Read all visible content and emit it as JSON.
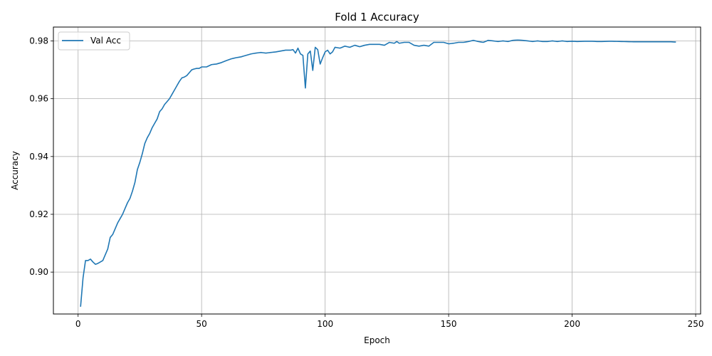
{
  "chart_data": {
    "type": "line",
    "title": "Fold 1 Accuracy",
    "xlabel": "Epoch",
    "ylabel": "Accuracy",
    "xlim": [
      -10,
      252
    ],
    "ylim": [
      0.8855,
      0.9848
    ],
    "xticks": [
      0,
      50,
      100,
      150,
      200,
      250
    ],
    "yticks": [
      0.9,
      0.92,
      0.94,
      0.96,
      0.98
    ],
    "xtick_labels": [
      "0",
      "50",
      "100",
      "150",
      "200",
      "250"
    ],
    "ytick_labels": [
      "0.90",
      "0.92",
      "0.94",
      "0.96",
      "0.98"
    ],
    "grid": true,
    "legend": {
      "position": "top-left",
      "entries": [
        "Val Acc"
      ]
    },
    "series_color": "#1f77b4",
    "anchors": [
      [
        1,
        0.888
      ],
      [
        2,
        0.898
      ],
      [
        3,
        0.904
      ],
      [
        4,
        0.904
      ],
      [
        5,
        0.9045
      ],
      [
        6,
        0.9035
      ],
      [
        7,
        0.9027
      ],
      [
        8,
        0.903
      ],
      [
        9,
        0.9035
      ],
      [
        10,
        0.904
      ],
      [
        11,
        0.906
      ],
      [
        12,
        0.908
      ],
      [
        13,
        0.912
      ],
      [
        14,
        0.913
      ],
      [
        15,
        0.915
      ],
      [
        16,
        0.917
      ],
      [
        17,
        0.9185
      ],
      [
        18,
        0.92
      ],
      [
        19,
        0.922
      ],
      [
        20,
        0.924
      ],
      [
        21,
        0.9255
      ],
      [
        22,
        0.928
      ],
      [
        23,
        0.931
      ],
      [
        24,
        0.9355
      ],
      [
        25,
        0.938
      ],
      [
        26,
        0.941
      ],
      [
        27,
        0.9445
      ],
      [
        28,
        0.9465
      ],
      [
        29,
        0.948
      ],
      [
        30,
        0.95
      ],
      [
        31,
        0.9515
      ],
      [
        32,
        0.953
      ],
      [
        33,
        0.9555
      ],
      [
        34,
        0.9565
      ],
      [
        35,
        0.958
      ],
      [
        36,
        0.959
      ],
      [
        37,
        0.96
      ],
      [
        38,
        0.9615
      ],
      [
        39,
        0.963
      ],
      [
        40,
        0.9645
      ],
      [
        41,
        0.966
      ],
      [
        42,
        0.9672
      ],
      [
        43,
        0.9675
      ],
      [
        44,
        0.968
      ],
      [
        45,
        0.969
      ],
      [
        46,
        0.97
      ],
      [
        47,
        0.9703
      ],
      [
        48,
        0.9705
      ],
      [
        49,
        0.9705
      ],
      [
        50,
        0.971
      ],
      [
        52,
        0.971
      ],
      [
        54,
        0.9718
      ],
      [
        56,
        0.972
      ],
      [
        58,
        0.9725
      ],
      [
        60,
        0.9732
      ],
      [
        62,
        0.9738
      ],
      [
        64,
        0.9742
      ],
      [
        66,
        0.9745
      ],
      [
        68,
        0.975
      ],
      [
        70,
        0.9755
      ],
      [
        72,
        0.9758
      ],
      [
        74,
        0.976
      ],
      [
        76,
        0.9758
      ],
      [
        78,
        0.976
      ],
      [
        80,
        0.9762
      ],
      [
        82,
        0.9765
      ],
      [
        84,
        0.9768
      ],
      [
        86,
        0.9768
      ],
      [
        87,
        0.977
      ],
      [
        88,
        0.9758
      ],
      [
        89,
        0.9775
      ],
      [
        90,
        0.9755
      ],
      [
        91,
        0.975
      ],
      [
        92,
        0.9637
      ],
      [
        93,
        0.9755
      ],
      [
        94,
        0.9765
      ],
      [
        95,
        0.9698
      ],
      [
        96,
        0.9778
      ],
      [
        97,
        0.977
      ],
      [
        98,
        0.972
      ],
      [
        99,
        0.9742
      ],
      [
        100,
        0.9762
      ],
      [
        101,
        0.9768
      ],
      [
        102,
        0.9755
      ],
      [
        103,
        0.9762
      ],
      [
        104,
        0.9778
      ],
      [
        106,
        0.9775
      ],
      [
        108,
        0.9782
      ],
      [
        110,
        0.9778
      ],
      [
        112,
        0.9785
      ],
      [
        114,
        0.978
      ],
      [
        116,
        0.9785
      ],
      [
        118,
        0.9788
      ],
      [
        120,
        0.9788
      ],
      [
        122,
        0.9788
      ],
      [
        124,
        0.9785
      ],
      [
        126,
        0.9795
      ],
      [
        128,
        0.9792
      ],
      [
        129,
        0.9798
      ],
      [
        130,
        0.9792
      ],
      [
        132,
        0.9795
      ],
      [
        134,
        0.9795
      ],
      [
        136,
        0.9785
      ],
      [
        138,
        0.9782
      ],
      [
        140,
        0.9785
      ],
      [
        142,
        0.9782
      ],
      [
        144,
        0.9795
      ],
      [
        146,
        0.9795
      ],
      [
        148,
        0.9795
      ],
      [
        150,
        0.979
      ],
      [
        152,
        0.9792
      ],
      [
        154,
        0.9795
      ],
      [
        156,
        0.9795
      ],
      [
        158,
        0.9798
      ],
      [
        160,
        0.9802
      ],
      [
        162,
        0.9798
      ],
      [
        164,
        0.9795
      ],
      [
        166,
        0.9802
      ],
      [
        168,
        0.98
      ],
      [
        170,
        0.9798
      ],
      [
        172,
        0.98
      ],
      [
        174,
        0.9798
      ],
      [
        176,
        0.9802
      ],
      [
        178,
        0.9803
      ],
      [
        180,
        0.9802
      ],
      [
        182,
        0.98
      ],
      [
        184,
        0.9798
      ],
      [
        186,
        0.98
      ],
      [
        188,
        0.9798
      ],
      [
        190,
        0.9798
      ],
      [
        192,
        0.98
      ],
      [
        194,
        0.9798
      ],
      [
        196,
        0.98
      ],
      [
        198,
        0.9798
      ],
      [
        200,
        0.9799
      ],
      [
        202,
        0.9798
      ],
      [
        205,
        0.9799
      ],
      [
        208,
        0.9799
      ],
      [
        210,
        0.9798
      ],
      [
        212,
        0.9798
      ],
      [
        215,
        0.9799
      ],
      [
        220,
        0.9798
      ],
      [
        225,
        0.9797
      ],
      [
        230,
        0.9797
      ],
      [
        235,
        0.9797
      ],
      [
        240,
        0.9797
      ],
      [
        242,
        0.9796
      ]
    ]
  }
}
